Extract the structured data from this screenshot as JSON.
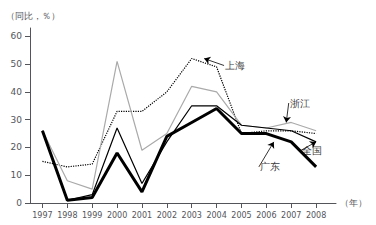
{
  "chart_data": {
    "type": "line",
    "x": [
      1997,
      1998,
      1999,
      2000,
      2001,
      2002,
      2003,
      2004,
      2005,
      2006,
      2007,
      2008
    ],
    "series": [
      {
        "name": "上海",
        "color": "#000000",
        "line_style": "dotted",
        "values": [
          15,
          13,
          14,
          33,
          33,
          40,
          52,
          49,
          25,
          26,
          26,
          25
        ]
      },
      {
        "name": "浙江",
        "color": "#aaaaaa",
        "line_style": "solid",
        "values": [
          26,
          8,
          5,
          51,
          19,
          25,
          42,
          40,
          28,
          27,
          29,
          26
        ]
      },
      {
        "name": "全国",
        "color": "#000000",
        "line_style": "solid",
        "values": [
          26,
          1,
          3,
          27,
          7,
          22,
          35,
          35,
          28,
          27,
          26,
          22
        ]
      },
      {
        "name": "广东",
        "color": "#000000",
        "line_style": "thick",
        "values": [
          26,
          1,
          2,
          18,
          4,
          24,
          29,
          34,
          25,
          25,
          22,
          13
        ]
      }
    ],
    "ylabel": "（同比，％）",
    "xlabel": "（年）",
    "xlim": [
      1996.5,
      2008.8
    ],
    "xticks": [
      1997,
      1998,
      1999,
      2000,
      2001,
      2002,
      2003,
      2004,
      2005,
      2006,
      2007,
      2008
    ],
    "ylim": [
      0,
      63
    ],
    "yticks": [
      0,
      10,
      20,
      30,
      40,
      50,
      60
    ],
    "grid": false,
    "annotations": [
      {
        "text": "上海",
        "xy": [
          2003.5,
          52
        ],
        "xytext": [
          2004.3,
          49.5
        ]
      },
      {
        "text": "浙江",
        "xy": [
          2006.8,
          29
        ],
        "xytext": [
          2006.9,
          36
        ]
      },
      {
        "text": "全国",
        "xy": [
          2008.0,
          22
        ],
        "xytext": [
          2007.4,
          19
        ]
      },
      {
        "text": "广东",
        "xy": [
          2006.3,
          22
        ],
        "xytext": [
          2005.7,
          13
        ]
      }
    ]
  }
}
